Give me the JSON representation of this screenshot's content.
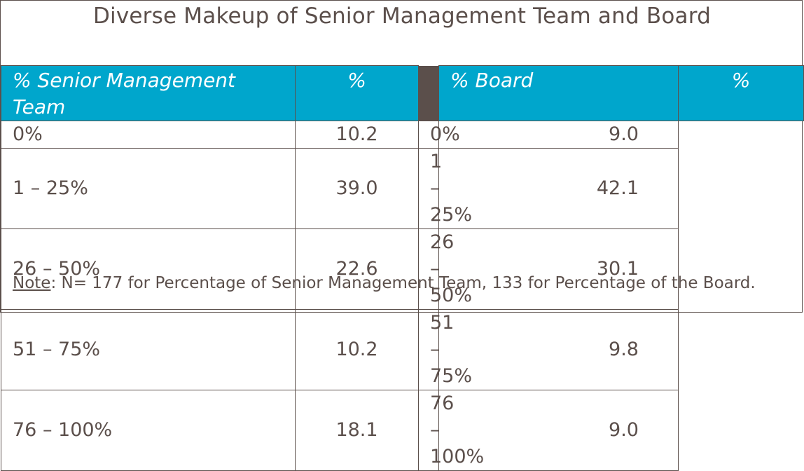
{
  "title": "Diverse Makeup of Senior Management Team and Board",
  "headers": {
    "col1": "% Senior Management Team",
    "col2": "%",
    "col4": "% Board",
    "col5": "%"
  },
  "rows": [
    {
      "sm_range": "0%",
      "sm_value": "10.2",
      "b_range": "0%",
      "b_value": "9.0"
    },
    {
      "sm_range": "1 – 25%",
      "sm_value": "39.0",
      "b_range": "1 – 25%",
      "b_value": "42.1"
    },
    {
      "sm_range": "26 – 50%",
      "sm_value": "22.6",
      "b_range": "26 – 50%",
      "b_value": "30.1"
    },
    {
      "sm_range": "51 – 75%",
      "sm_value": "10.2",
      "b_range": "51 – 75%",
      "b_value": "9.8"
    },
    {
      "sm_range": "76 – 100%",
      "sm_value": "18.1",
      "b_range": "76 – 100%",
      "b_value": "9.0"
    }
  ],
  "note": {
    "label": "Note",
    "text": ": N= 177 for Percentage of Senior Management Team, 133 for Percentage of the Board."
  },
  "colors": {
    "header_bg": "#00a6cc",
    "text": "#5b4f4b",
    "separator": "#5b4f4b"
  }
}
